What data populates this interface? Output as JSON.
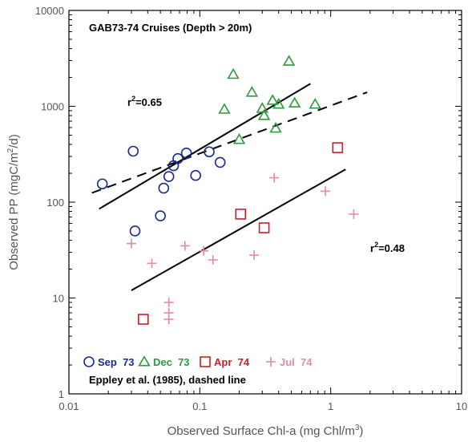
{
  "chart_data": {
    "type": "scatter",
    "title": "GAB73-74  Cruises  (Depth  >  20m)",
    "xlabel": "Observed Surface Chl-a (mg Chl/m³)",
    "ylabel": "Observed PP  (mgC/m²/d)",
    "xscale": "log",
    "yscale": "log",
    "xlim": [
      0.01,
      10
    ],
    "ylim": [
      1,
      10000
    ],
    "xticks": [
      0.01,
      0.1,
      1,
      10
    ],
    "xtick_labels": [
      "0.01",
      "0.1",
      "1",
      "10"
    ],
    "yticks": [
      1,
      10,
      100,
      1000,
      10000
    ],
    "ytick_labels": [
      "1",
      "10",
      "100",
      "1000",
      "10000"
    ],
    "series": [
      {
        "name": "Sep  73",
        "marker": "circle",
        "color": "#1c2a8c",
        "points": [
          [
            0.018,
            155
          ],
          [
            0.031,
            340
          ],
          [
            0.032,
            50
          ],
          [
            0.05,
            72
          ],
          [
            0.053,
            140
          ],
          [
            0.058,
            185
          ],
          [
            0.063,
            240
          ],
          [
            0.068,
            285
          ],
          [
            0.079,
            325
          ],
          [
            0.093,
            190
          ],
          [
            0.118,
            335
          ],
          [
            0.143,
            260
          ]
        ]
      },
      {
        "name": "Dec  73",
        "marker": "triangle",
        "color": "#2e9a3a",
        "points": [
          [
            0.154,
            930
          ],
          [
            0.18,
            2150
          ],
          [
            0.2,
            450
          ],
          [
            0.25,
            1400
          ],
          [
            0.3,
            950
          ],
          [
            0.31,
            800
          ],
          [
            0.36,
            1150
          ],
          [
            0.38,
            590
          ],
          [
            0.4,
            1050
          ],
          [
            0.48,
            2950
          ],
          [
            0.53,
            1080
          ],
          [
            0.76,
            1050
          ]
        ]
      },
      {
        "name": "Apr  74",
        "marker": "square",
        "color": "#c8202a",
        "points": [
          [
            0.037,
            6
          ],
          [
            0.205,
            75
          ],
          [
            0.31,
            54
          ],
          [
            1.13,
            370
          ]
        ]
      },
      {
        "name": "Jul  74",
        "marker": "plus",
        "color": "#e28aa6",
        "points": [
          [
            0.03,
            37
          ],
          [
            0.043,
            23
          ],
          [
            0.058,
            9
          ],
          [
            0.058,
            7
          ],
          [
            0.058,
            6
          ],
          [
            0.077,
            35
          ],
          [
            0.107,
            31
          ],
          [
            0.126,
            25
          ],
          [
            0.26,
            28
          ],
          [
            0.37,
            180
          ],
          [
            0.91,
            130
          ],
          [
            1.5,
            75
          ]
        ]
      }
    ],
    "fits": [
      {
        "label": "r²=0.65",
        "style": "solid",
        "from": [
          0.017,
          85
        ],
        "to": [
          0.7,
          1720
        ]
      },
      {
        "label": "r²=0.48",
        "style": "solid",
        "from": [
          0.03,
          12
        ],
        "to": [
          1.3,
          220
        ]
      },
      {
        "label": "",
        "style": "dashed",
        "from": [
          0.015,
          125
        ],
        "to": [
          1.9,
          1400
        ]
      }
    ],
    "annotations": {
      "r2_fit1": "r²=0.65",
      "r2_fit2": "r²=0.48",
      "eppley_note": "Eppley et al. (1985), dashed line"
    }
  }
}
